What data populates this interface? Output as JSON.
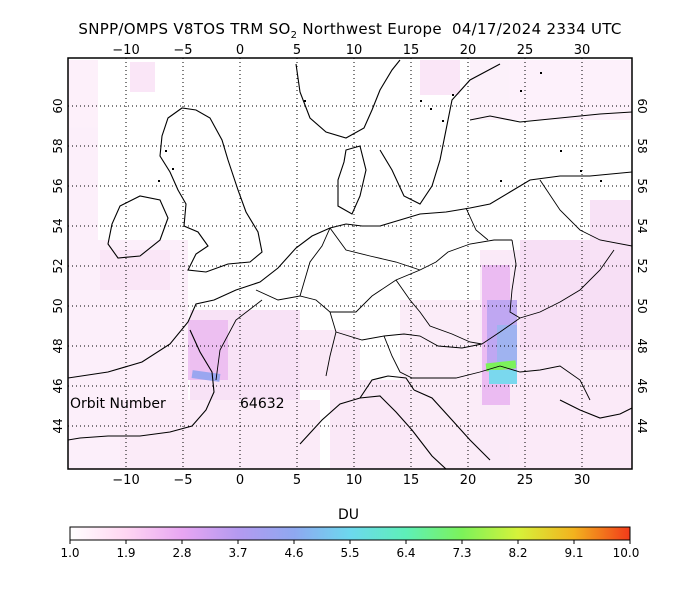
{
  "title": {
    "prefix": "SNPP/OMPS V8TOS TRM SO",
    "subscript": "2",
    "region": "Northwest Europe",
    "date": "04/17/2024",
    "time": "2334 UTC"
  },
  "map": {
    "lon_ticks": [
      "−10",
      "−5",
      "0",
      "5",
      "10",
      "15",
      "20",
      "25",
      "30"
    ],
    "lat_ticks": [
      "44",
      "46",
      "48",
      "50",
      "52",
      "54",
      "56",
      "58",
      "60"
    ],
    "orbit_label": "Orbit Number",
    "orbit_number": "64632"
  },
  "colorbar": {
    "unit": "DU",
    "tick_labels": [
      "1.0",
      "1.9",
      "2.8",
      "3.7",
      "4.6",
      "5.5",
      "6.4",
      "7.3",
      "8.2",
      "9.1",
      "10.0"
    ],
    "colors": [
      "#ffffff",
      "#ffd6f2",
      "#e8a6f2",
      "#b49af0",
      "#8fa8f0",
      "#6cd8ee",
      "#5ef0b8",
      "#7cf25a",
      "#d6f23a",
      "#f2b21e",
      "#f23a1a"
    ]
  }
}
